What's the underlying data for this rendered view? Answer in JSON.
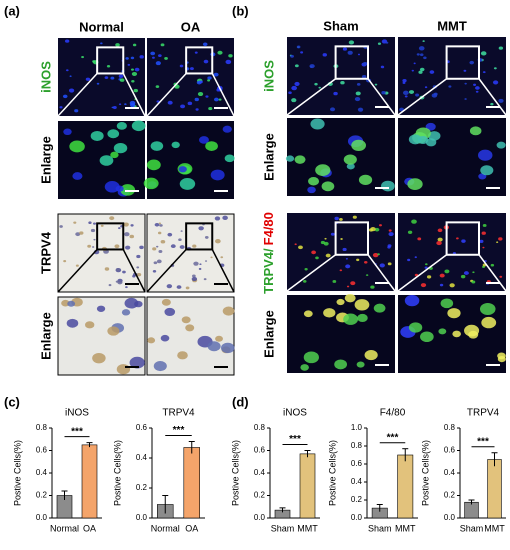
{
  "panel_labels": [
    "(a)",
    "(b)",
    "(c)",
    "(d)"
  ],
  "panel_a": {
    "columns": [
      "Normal",
      "OA"
    ],
    "rows": [
      "iNOS",
      "Enlarge",
      "TRPV4",
      "Enlarge"
    ]
  },
  "panel_b": {
    "columns": [
      "Sham",
      "MMT"
    ],
    "rows": [
      "iNOS",
      "Enlarge",
      [
        "TRPV4/",
        "F4/80"
      ],
      "Enlarge"
    ]
  },
  "chart_data": [
    {
      "type": "bar",
      "title": "iNOS",
      "y_label": "Postive Cells(%)",
      "categories": [
        "Normal",
        "OA"
      ],
      "values": [
        0.2,
        0.65
      ],
      "errors": [
        0.04,
        0.02
      ],
      "colors": [
        "#8c8c8c",
        "#f4a46a"
      ],
      "annotation": "***",
      "ylim": [
        0,
        0.8
      ],
      "yticks": [
        {
          "value": 0,
          "label": "0.0"
        },
        0.2,
        0.4,
        0.6,
        0.8
      ]
    },
    {
      "type": "bar",
      "title": "TRPV4",
      "y_label": "Postive Cells(%)",
      "categories": [
        "Normal",
        "OA"
      ],
      "values": [
        0.09,
        0.47
      ],
      "errors": [
        0.06,
        0.04
      ],
      "colors": [
        "#8c8c8c",
        "#f4a46a"
      ],
      "annotation": "***",
      "ylim": [
        0,
        0.6
      ],
      "yticks": [
        {
          "value": 0,
          "label": "0.0"
        },
        0.2,
        0.4,
        0.6
      ]
    },
    {
      "type": "bar",
      "title": "iNOS",
      "y_label": "Postive Cells(%)",
      "categories": [
        "Sham",
        "MMT"
      ],
      "values": [
        0.07,
        0.57
      ],
      "errors": [
        0.02,
        0.03
      ],
      "colors": [
        "#8c8c8c",
        "#e2c27c"
      ],
      "annotation": "***",
      "ylim": [
        0,
        0.8
      ],
      "yticks": [
        {
          "value": 0,
          "label": "0.0"
        },
        0.2,
        0.4,
        0.6,
        0.8
      ]
    },
    {
      "type": "bar",
      "title": "F4/80",
      "y_label": "Postive Cells(%)",
      "categories": [
        "Sham",
        "MMT"
      ],
      "values": [
        0.11,
        0.7
      ],
      "errors": [
        0.04,
        0.07
      ],
      "colors": [
        "#8c8c8c",
        "#e2c27c"
      ],
      "annotation": "***",
      "ylim": [
        0,
        1
      ],
      "yticks": [
        {
          "value": 0,
          "label": "0.0"
        },
        0.2,
        0.4,
        0.6,
        0.8,
        {
          "value": 1,
          "label": "1.0"
        }
      ]
    },
    {
      "type": "bar",
      "title": "TRPV4",
      "y_label": "Postive Cells(%)",
      "categories": [
        "Sham",
        "MMT"
      ],
      "values": [
        0.14,
        0.52
      ],
      "errors": [
        0.02,
        0.06
      ],
      "colors": [
        "#8c8c8c",
        "#e2c27c"
      ],
      "annotation": "***",
      "ylim": [
        0,
        0.8
      ],
      "yticks": [
        {
          "value": 0,
          "label": "0.0"
        },
        0.2,
        0.4,
        0.6,
        0.8
      ]
    }
  ]
}
